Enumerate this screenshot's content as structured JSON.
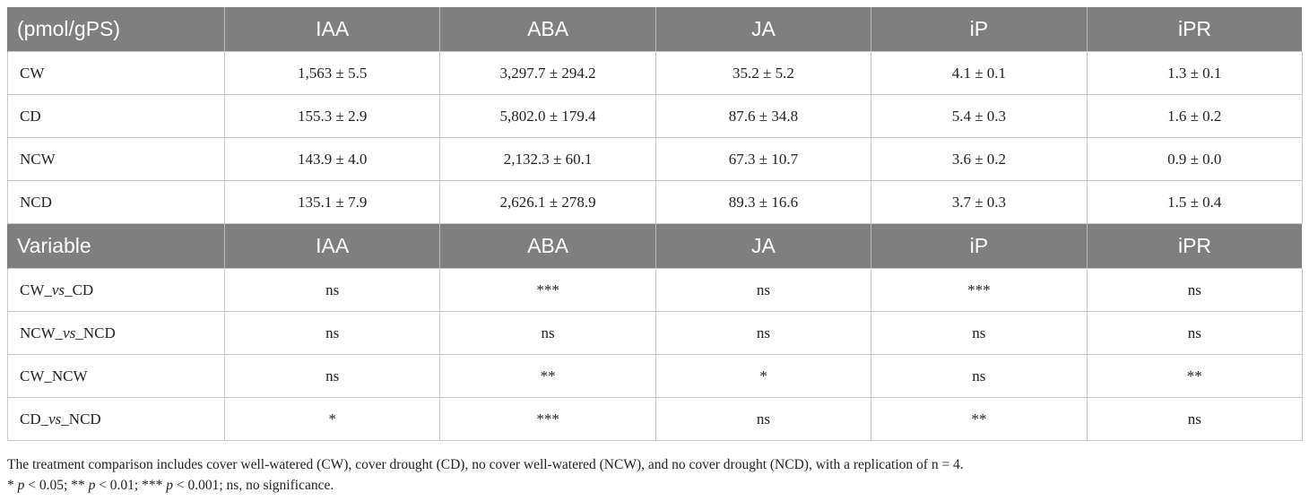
{
  "table1": {
    "header": [
      "(pmol/gPS)",
      "IAA",
      "ABA",
      "JA",
      "iP",
      "iPR"
    ],
    "rows": [
      [
        "CW",
        "1,563 ± 5.5",
        "3,297.7 ± 294.2",
        "35.2 ± 5.2",
        "4.1 ± 0.1",
        "1.3 ± 0.1"
      ],
      [
        "CD",
        "155.3 ± 2.9",
        "5,802.0 ± 179.4",
        "87.6 ± 34.8",
        "5.4 ± 0.3",
        "1.6 ± 0.2"
      ],
      [
        "NCW",
        "143.9 ± 4.0",
        "2,132.3 ± 60.1",
        "67.3 ± 10.7",
        "3.6 ± 0.2",
        "0.9 ± 0.0"
      ],
      [
        "NCD",
        "135.1 ± 7.9",
        "2,626.1 ± 278.9",
        "89.3 ± 16.6",
        "3.7 ± 0.3",
        "1.5 ± 0.4"
      ]
    ]
  },
  "table2": {
    "header": [
      "Variable",
      "IAA",
      "ABA",
      "JA",
      "iP",
      "iPR"
    ],
    "rows": [
      {
        "label": {
          "a": "CW_",
          "vs": "vs",
          "b": "_CD"
        },
        "values": [
          "ns",
          "***",
          "ns",
          "***",
          "ns"
        ]
      },
      {
        "label": {
          "a": "NCW_",
          "vs": "vs",
          "b": "_NCD"
        },
        "values": [
          "ns",
          "ns",
          "ns",
          "ns",
          "ns"
        ]
      },
      {
        "label": {
          "a": "CW_NCW",
          "vs": "",
          "b": ""
        },
        "values": [
          "ns",
          "**",
          "*",
          "ns",
          "**"
        ]
      },
      {
        "label": {
          "a": "CD_",
          "vs": "vs",
          "b": "_NCD"
        },
        "values": [
          "*",
          "***",
          "ns",
          "**",
          "ns"
        ]
      }
    ]
  },
  "footnote": {
    "line1": "The treatment comparison includes cover well-watered (CW), cover drought (CD), no cover well-watered (NCW), and no cover drought (NCD), with a replication of n = 4.",
    "p1_star": "*",
    "p1_var": "p",
    "p1_text": " < 0.05; ** ",
    "p2_var": "p",
    "p2_text": " < 0.01; *** ",
    "p3_var": "p",
    "p3_text": " < 0.001; ns, no significance."
  }
}
